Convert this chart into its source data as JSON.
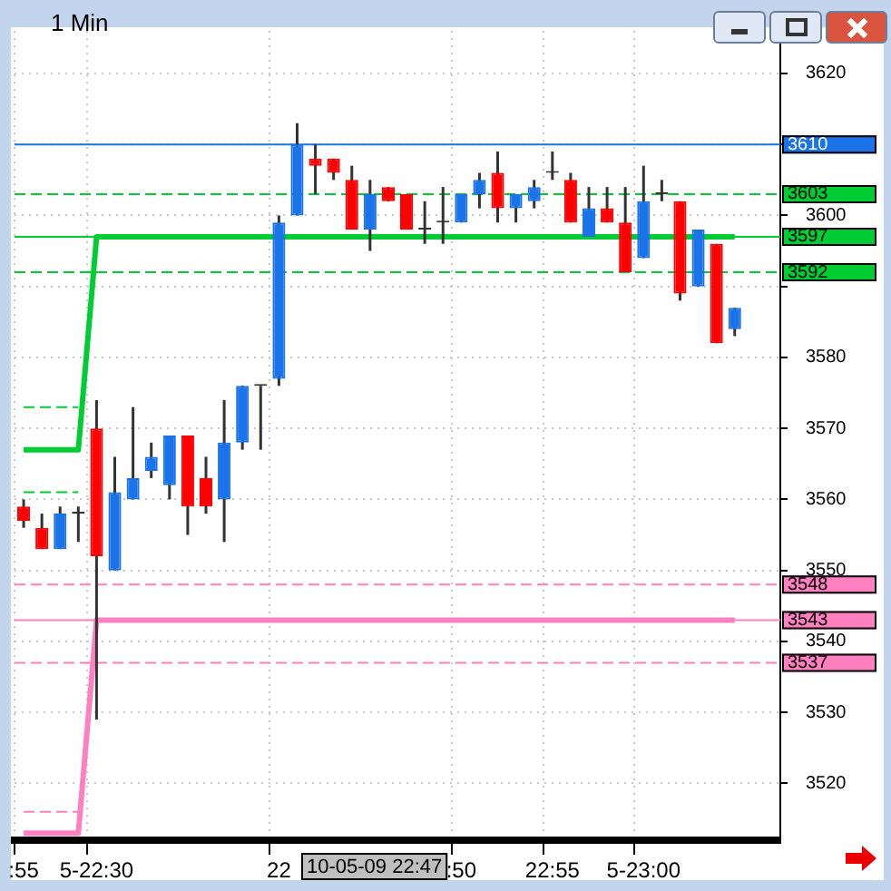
{
  "chart_data": {
    "type": "candlestick",
    "title": "1 Min",
    "categories": [
      ":55",
      null,
      null,
      null,
      "5-22:30",
      null,
      null,
      null,
      null,
      null,
      null,
      null,
      null,
      null,
      "22",
      null,
      null,
      null,
      null,
      null,
      null,
      null,
      null,
      null,
      ":50",
      null,
      null,
      null,
      null,
      "22:55",
      null,
      null,
      null,
      null,
      "5-23:00",
      null,
      null,
      null,
      null,
      null,
      null,
      null
    ],
    "ohlc": [
      [
        3559,
        3560,
        3556,
        3557
      ],
      [
        3556,
        3558,
        3553,
        3553
      ],
      [
        3553,
        3559,
        3553,
        3558
      ],
      [
        3558,
        3559,
        3554,
        3558
      ],
      [
        3570,
        3574,
        3529,
        3552
      ],
      [
        3550,
        3566,
        3550,
        3561
      ],
      [
        3560,
        3573,
        3560,
        3563
      ],
      [
        3564,
        3568,
        3563,
        3566
      ],
      [
        3562,
        3569,
        3560,
        3569
      ],
      [
        3569,
        3569,
        3555,
        3559
      ],
      [
        3563,
        3566,
        3558,
        3559
      ],
      [
        3560,
        3574,
        3554,
        3568
      ],
      [
        3568,
        3576,
        3567,
        3576
      ],
      [
        3576,
        3576,
        3567,
        3576
      ],
      [
        3577,
        3600,
        3576,
        3599
      ],
      [
        3600,
        3613,
        3600,
        3610
      ],
      [
        3608,
        3610,
        3603,
        3607
      ],
      [
        3608,
        3608,
        3605,
        3606
      ],
      [
        3605,
        3607,
        3598,
        3598
      ],
      [
        3598,
        3605,
        3595,
        3603
      ],
      [
        3604,
        3604,
        3602,
        3602
      ],
      [
        3603,
        3603,
        3598,
        3598
      ],
      [
        3598,
        3602,
        3596,
        3598
      ],
      [
        3599,
        3604,
        3596,
        3599
      ],
      [
        3599,
        3603,
        3599,
        3603
      ],
      [
        3603,
        3606,
        3601,
        3605
      ],
      [
        3606,
        3609,
        3599,
        3601
      ],
      [
        3601,
        3603,
        3599,
        3603
      ],
      [
        3602,
        3605,
        3601,
        3604
      ],
      [
        3606,
        3609,
        3605,
        3606
      ],
      [
        3605,
        3606,
        3599,
        3599
      ],
      [
        3597,
        3604,
        3597,
        3601
      ],
      [
        3601,
        3604,
        3599,
        3599
      ],
      [
        3599,
        3604,
        3592,
        3592
      ],
      [
        3594,
        3607,
        3594,
        3602
      ],
      [
        3603,
        3605,
        3602,
        3603
      ],
      [
        3602,
        3602,
        3588,
        3589
      ],
      [
        3590,
        3598,
        3590,
        3598
      ],
      [
        3596,
        3596,
        3582,
        3582
      ],
      [
        3584,
        3587,
        3583,
        3587
      ],
      null,
      null
    ],
    "colors": [
      "#ff0000",
      "#ff0000",
      "#1a73e8",
      "#333333",
      "#ff0000",
      "#1a73e8",
      "#1a73e8",
      "#1a73e8",
      "#1a73e8",
      "#ff0000",
      "#ff0000",
      "#1a73e8",
      "#1a73e8",
      "#333333",
      "#1a73e8",
      "#1a73e8",
      "#ff0000",
      "#ff0000",
      "#ff0000",
      "#1a73e8",
      "#ff0000",
      "#ff0000",
      "#333333",
      "#333333",
      "#1a73e8",
      "#1a73e8",
      "#ff0000",
      "#1a73e8",
      "#1a73e8",
      "#333333",
      "#ff0000",
      "#1a73e8",
      "#ff0000",
      "#ff0000",
      "#1a73e8",
      "#333333",
      "#ff0000",
      "#1a73e8",
      "#ff0000",
      "#1a73e8",
      null,
      null
    ],
    "series": [
      {
        "type": "line",
        "color": "#00cc33",
        "line_style": "solid",
        "values": [
          3567,
          3567,
          3567,
          3567,
          3597,
          3597,
          3597,
          3597,
          3597,
          3597,
          3597,
          3597,
          3597,
          3597,
          3597,
          3597,
          3597,
          3597,
          3597,
          3597,
          3597,
          3597,
          3597,
          3597,
          3597,
          3597,
          3597,
          3597,
          3597,
          3597,
          3597,
          3597,
          3597,
          3597,
          3597,
          3597,
          3597,
          3597,
          3597,
          3597,
          null,
          null
        ]
      },
      {
        "type": "line",
        "color": "#00cc33",
        "line_style": "dashed",
        "values": [
          3573,
          3573,
          3573,
          3573,
          null,
          null,
          null,
          null,
          null,
          null,
          null,
          null,
          null,
          null,
          null,
          null,
          null,
          null,
          null,
          null,
          null,
          null,
          null,
          null,
          null,
          null,
          null,
          null,
          null,
          null,
          null,
          null,
          null,
          null,
          null,
          null,
          null,
          null,
          null,
          null,
          null,
          null
        ]
      },
      {
        "type": "line",
        "color": "#00cc33",
        "line_style": "dashed",
        "values": [
          3561,
          3561,
          3561,
          3561,
          null,
          null,
          null,
          null,
          null,
          null,
          null,
          null,
          null,
          null,
          null,
          null,
          null,
          null,
          null,
          null,
          null,
          null,
          null,
          null,
          null,
          null,
          null,
          null,
          null,
          null,
          null,
          null,
          null,
          null,
          null,
          null,
          null,
          null,
          null,
          null,
          null,
          null
        ]
      },
      {
        "type": "line",
        "color": "#ff80c0",
        "line_style": "solid",
        "values": [
          3513,
          3513,
          3513,
          3513,
          3543,
          3543,
          3543,
          3543,
          3543,
          3543,
          3543,
          3543,
          3543,
          3543,
          3543,
          3543,
          3543,
          3543,
          3543,
          3543,
          3543,
          3543,
          3543,
          3543,
          3543,
          3543,
          3543,
          3543,
          3543,
          3543,
          3543,
          3543,
          3543,
          3543,
          3543,
          3543,
          3543,
          3543,
          3543,
          3543,
          null,
          null
        ]
      },
      {
        "type": "line",
        "color": "#ff80c0",
        "line_style": "dashed",
        "values": [
          3516,
          3516,
          3516,
          3516,
          null,
          null,
          null,
          null,
          null,
          null,
          null,
          null,
          null,
          null,
          null,
          null,
          null,
          null,
          null,
          null,
          null,
          null,
          null,
          null,
          null,
          null,
          null,
          null,
          null,
          null,
          null,
          null,
          null,
          null,
          null,
          null,
          null,
          null,
          null,
          null,
          null,
          null
        ]
      }
    ],
    "ylim": [
      3512,
      3626
    ],
    "yticks": [
      3520,
      3530,
      3540,
      3550,
      3560,
      3570,
      3580,
      {
        "value": 3590,
        "label": null
      },
      3600,
      {
        "value": 3610,
        "label": null
      },
      3620
    ],
    "ref_lines": [
      {
        "axis": "y",
        "value": 3610,
        "label": "3610",
        "color": "#1a73e8",
        "line_style": "solid"
      },
      {
        "axis": "y",
        "value": 3603,
        "label": "3603",
        "color": "#00cc33",
        "line_style": "dashed"
      },
      {
        "axis": "y",
        "value": 3597,
        "label": "3597",
        "color": "#00cc33",
        "line_style": "solid"
      },
      {
        "axis": "y",
        "value": 3592,
        "label": "3592",
        "color": "#00cc33",
        "line_style": "dashed"
      },
      {
        "axis": "y",
        "value": 3548,
        "label": "3548",
        "color": "#ff80c0",
        "line_style": "dashed"
      },
      {
        "axis": "y",
        "value": 3543,
        "label": "3543",
        "color": "#ff80c0",
        "line_style": "solid"
      },
      {
        "axis": "y",
        "value": 3537,
        "label": "3537",
        "color": "#ff80c0",
        "line_style": "dashed"
      }
    ],
    "annotations": [
      "10-05-09 22:47"
    ],
    "grid": true,
    "marker": "none",
    "legend": false
  }
}
